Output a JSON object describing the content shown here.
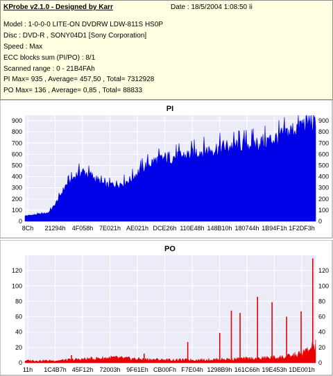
{
  "info": {
    "title": "KProbe v2.1.0 - Designed by Karr",
    "date": "Date : 18/5/2004 1:08:50 ïi",
    "model": "Model : 1-0-0-0 LITE-ON DVDRW LDW-811S   HS0P",
    "disc": "Disc : DVD-R , SONY04D1 [Sony Corporation]",
    "speed": "Speed : Max",
    "ecc": "ECC blocks sum (PI/PO) : 8/1",
    "range": "Scanned range : 0 - 21B4FAh",
    "pi_stats": "PI Max= 935 , Average= 457,50 , Total= 7312928",
    "po_stats": "PO Max= 136 , Average= 0,85 , Total= 88833"
  },
  "colors": {
    "pi_fill": "#0000e6",
    "po_fill": "#e80000",
    "plot_bg": "#ececf8",
    "grid": "#ffffff",
    "panel_bg": "#ffffff"
  },
  "chart_data": [
    {
      "type": "area",
      "title": "PI",
      "x_tick_labels": [
        "8Ch",
        "21294h",
        "4F058h",
        "7E021h",
        "AE021h",
        "DCE26h",
        "110E48h",
        "148B10h",
        "180744h",
        "1B94F1h",
        "1F2DF3h"
      ],
      "ylim": [
        0,
        950
      ],
      "y_ticks": [
        0,
        100,
        200,
        300,
        400,
        500,
        600,
        700,
        800,
        900
      ],
      "grid": true,
      "x": [
        0,
        3,
        6,
        8,
        10,
        12,
        14,
        16,
        18,
        20,
        23,
        26,
        28,
        30,
        33,
        36,
        38,
        40,
        42,
        45,
        48,
        50,
        53,
        56,
        58,
        61,
        64,
        67,
        70,
        73,
        76,
        80,
        83,
        86,
        89,
        92,
        95,
        98,
        100
      ],
      "values": [
        50,
        60,
        70,
        80,
        140,
        230,
        330,
        380,
        440,
        460,
        420,
        360,
        330,
        340,
        350,
        380,
        430,
        480,
        520,
        560,
        580,
        590,
        600,
        610,
        630,
        650,
        660,
        680,
        690,
        700,
        710,
        720,
        740,
        760,
        800,
        840,
        890,
        920,
        880
      ],
      "peak": 935
    },
    {
      "type": "bar",
      "title": "PO",
      "x_tick_labels": [
        "11h",
        "1C4B7h",
        "45F12h",
        "72003h",
        "9F61Eh",
        "CB00Fh",
        "F7E04h",
        "1298B9h",
        "161C66h",
        "19E453h",
        "1DE001h"
      ],
      "ylim": [
        0,
        140
      ],
      "y_ticks": [
        0,
        20,
        40,
        60,
        80,
        100,
        120
      ],
      "grid": true,
      "baseline_x": [
        0,
        10,
        20,
        30,
        40,
        50,
        60,
        70,
        80,
        90,
        95,
        100
      ],
      "baseline_values": [
        3,
        3,
        5,
        7,
        5,
        4,
        4,
        5,
        6,
        8,
        12,
        22
      ],
      "spikes": [
        {
          "x": 16,
          "value": 10
        },
        {
          "x": 41,
          "value": 12
        },
        {
          "x": 56,
          "value": 27
        },
        {
          "x": 67,
          "value": 39
        },
        {
          "x": 71,
          "value": 68
        },
        {
          "x": 74,
          "value": 65
        },
        {
          "x": 80,
          "value": 86
        },
        {
          "x": 85,
          "value": 79
        },
        {
          "x": 90,
          "value": 60
        },
        {
          "x": 95,
          "value": 67
        },
        {
          "x": 99,
          "value": 136
        }
      ]
    }
  ]
}
